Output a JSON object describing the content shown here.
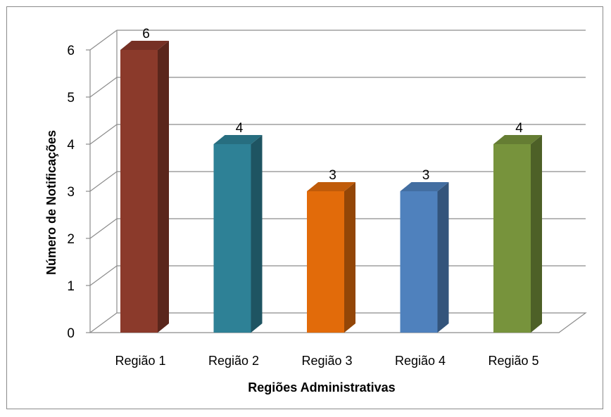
{
  "chart_data": {
    "type": "bar",
    "style": "3d-column",
    "categories": [
      "Região 1",
      "Região 2",
      "Região 3",
      "Região 4",
      "Região 5"
    ],
    "values": [
      6,
      4,
      3,
      3,
      4
    ],
    "data_labels": [
      "6",
      "4",
      "3",
      "3",
      "4"
    ],
    "title": "",
    "xlabel": "Regiões Administrativas",
    "ylabel": "Número de Notificações",
    "ylim": [
      0,
      6
    ],
    "yticks": [
      "0",
      "1",
      "2",
      "3",
      "4",
      "5",
      "6"
    ],
    "grid": true,
    "legend": "none",
    "bar_colors": [
      "#8B3A2B",
      "#2E8196",
      "#E26B0A",
      "#4F81BD",
      "#77933C"
    ]
  }
}
